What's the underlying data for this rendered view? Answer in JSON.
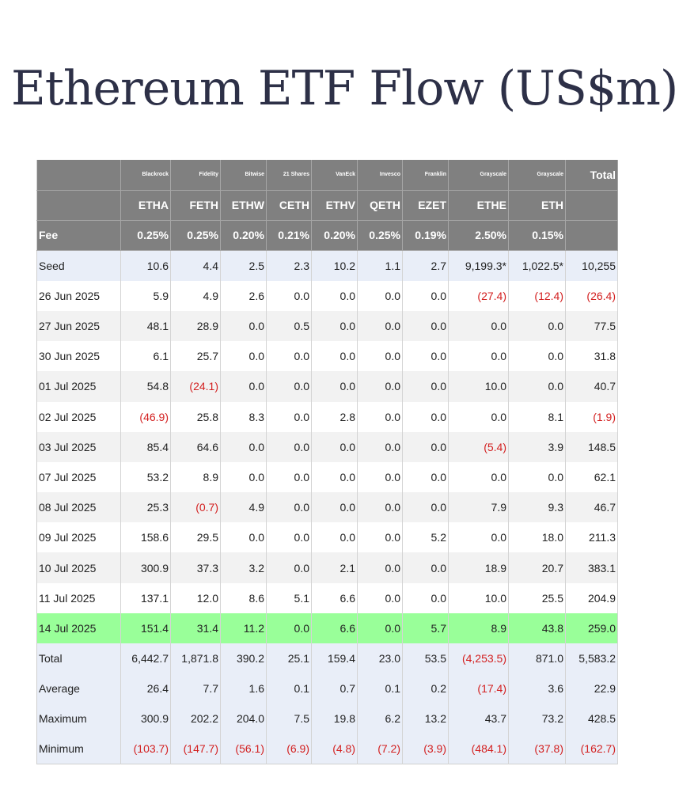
{
  "title": "Ethereum ETF Flow (US$m)",
  "colors": {
    "header_bg": "#808080",
    "highlight_row": "#99ff99",
    "summary_bg": "#e9eef8",
    "negative": "#d32020",
    "title": "#2d3047"
  },
  "header": {
    "issuers": [
      "",
      "Blackrock",
      "Fidelity",
      "Bitwise",
      "21 Shares",
      "VanEck",
      "Invesco",
      "Franklin",
      "Grayscale",
      "Grayscale",
      "Total"
    ],
    "tickers": [
      "",
      "ETHA",
      "FETH",
      "ETHW",
      "CETH",
      "ETHV",
      "QETH",
      "EZET",
      "ETHE",
      "ETH",
      ""
    ],
    "fees": [
      "Fee",
      "0.25%",
      "0.25%",
      "0.20%",
      "0.21%",
      "0.20%",
      "0.25%",
      "0.19%",
      "2.50%",
      "0.15%",
      ""
    ]
  },
  "rows": [
    {
      "style": "summary",
      "cells": [
        "Seed",
        "10.6",
        "4.4",
        "2.5",
        "2.3",
        "10.2",
        "1.1",
        "2.7",
        "9,199.3*",
        "1,022.5*",
        "10,255"
      ]
    },
    {
      "style": "plain",
      "cells": [
        "26 Jun 2025",
        "5.9",
        "4.9",
        "2.6",
        "0.0",
        "0.0",
        "0.0",
        "0.0",
        "(27.4)",
        "(12.4)",
        "(26.4)"
      ]
    },
    {
      "style": "alt",
      "cells": [
        "27 Jun 2025",
        "48.1",
        "28.9",
        "0.0",
        "0.5",
        "0.0",
        "0.0",
        "0.0",
        "0.0",
        "0.0",
        "77.5"
      ]
    },
    {
      "style": "plain",
      "cells": [
        "30 Jun 2025",
        "6.1",
        "25.7",
        "0.0",
        "0.0",
        "0.0",
        "0.0",
        "0.0",
        "0.0",
        "0.0",
        "31.8"
      ]
    },
    {
      "style": "alt",
      "cells": [
        "01 Jul 2025",
        "54.8",
        "(24.1)",
        "0.0",
        "0.0",
        "0.0",
        "0.0",
        "0.0",
        "10.0",
        "0.0",
        "40.7"
      ]
    },
    {
      "style": "plain",
      "cells": [
        "02 Jul 2025",
        "(46.9)",
        "25.8",
        "8.3",
        "0.0",
        "2.8",
        "0.0",
        "0.0",
        "0.0",
        "8.1",
        "(1.9)"
      ]
    },
    {
      "style": "alt",
      "cells": [
        "03 Jul 2025",
        "85.4",
        "64.6",
        "0.0",
        "0.0",
        "0.0",
        "0.0",
        "0.0",
        "(5.4)",
        "3.9",
        "148.5"
      ]
    },
    {
      "style": "plain",
      "cells": [
        "07 Jul 2025",
        "53.2",
        "8.9",
        "0.0",
        "0.0",
        "0.0",
        "0.0",
        "0.0",
        "0.0",
        "0.0",
        "62.1"
      ]
    },
    {
      "style": "alt",
      "cells": [
        "08 Jul 2025",
        "25.3",
        "(0.7)",
        "4.9",
        "0.0",
        "0.0",
        "0.0",
        "0.0",
        "7.9",
        "9.3",
        "46.7"
      ]
    },
    {
      "style": "plain",
      "cells": [
        "09 Jul 2025",
        "158.6",
        "29.5",
        "0.0",
        "0.0",
        "0.0",
        "0.0",
        "5.2",
        "0.0",
        "18.0",
        "211.3"
      ]
    },
    {
      "style": "alt",
      "cells": [
        "10 Jul 2025",
        "300.9",
        "37.3",
        "3.2",
        "0.0",
        "2.1",
        "0.0",
        "0.0",
        "18.9",
        "20.7",
        "383.1"
      ]
    },
    {
      "style": "plain",
      "cells": [
        "11 Jul 2025",
        "137.1",
        "12.0",
        "8.6",
        "5.1",
        "6.6",
        "0.0",
        "0.0",
        "10.0",
        "25.5",
        "204.9"
      ]
    },
    {
      "style": "highlight",
      "cells": [
        "14 Jul 2025",
        "151.4",
        "31.4",
        "11.2",
        "0.0",
        "6.6",
        "0.0",
        "5.7",
        "8.9",
        "43.8",
        "259.0"
      ]
    },
    {
      "style": "summary",
      "cells": [
        "Total",
        "6,442.7",
        "1,871.8",
        "390.2",
        "25.1",
        "159.4",
        "23.0",
        "53.5",
        "(4,253.5)",
        "871.0",
        "5,583.2"
      ]
    },
    {
      "style": "summary",
      "cells": [
        "Average",
        "26.4",
        "7.7",
        "1.6",
        "0.1",
        "0.7",
        "0.1",
        "0.2",
        "(17.4)",
        "3.6",
        "22.9"
      ]
    },
    {
      "style": "summary",
      "cells": [
        "Maximum",
        "300.9",
        "202.2",
        "204.0",
        "7.5",
        "19.8",
        "6.2",
        "13.2",
        "43.7",
        "73.2",
        "428.5"
      ]
    },
    {
      "style": "summary",
      "cells": [
        "Minimum",
        "(103.7)",
        "(147.7)",
        "(56.1)",
        "(6.9)",
        "(4.8)",
        "(7.2)",
        "(3.9)",
        "(484.1)",
        "(37.8)",
        "(162.7)"
      ]
    }
  ]
}
